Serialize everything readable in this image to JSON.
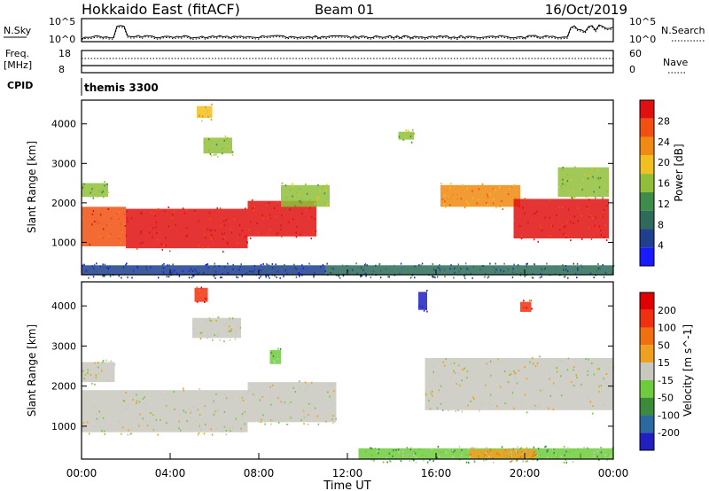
{
  "header": {
    "station": "Hokkaido East (fitACF)",
    "beam": "Beam 01",
    "date": "16/Oct/2019"
  },
  "noise_panel": {
    "left_label": "N.Sky",
    "left_ticks": [
      "10^5",
      "10^0"
    ],
    "right_label": "N.Search",
    "right_ticks": [
      "10^5",
      "10^0"
    ]
  },
  "freq_panel": {
    "left_label_1": "Freq.",
    "left_label_2": "[MHz]",
    "left_ticks": [
      "18",
      "8"
    ],
    "right_label": "Nave",
    "right_ticks": [
      "60",
      "0"
    ]
  },
  "cpid_panel": {
    "label": "CPID",
    "value": "themis 3300"
  },
  "colors": {
    "power_scale": [
      "#1a1aff",
      "#1f3f8f",
      "#2e6b5a",
      "#3e8c4a",
      "#8fbf3a",
      "#f0c020",
      "#f08a10",
      "#f05010",
      "#e01010"
    ],
    "velocity_scale": [
      "#2020c0",
      "#2a6aa0",
      "#3c8a3c",
      "#6ecc3c",
      "#c8c8c0",
      "#f0a020",
      "#f07010",
      "#f03010",
      "#e00000"
    ],
    "ground_scatter": "#c8c8c0"
  },
  "chart_data": [
    {
      "type": "heatmap",
      "name": "power",
      "xlabel": "",
      "ylabel": "Slant Range [km]",
      "x_ticks": [
        "00:00",
        "04:00",
        "08:00",
        "12:00",
        "16:00",
        "20:00",
        "00:00"
      ],
      "y_ticks": [
        1000,
        2000,
        3000,
        4000
      ],
      "ylim": [
        180,
        4600
      ],
      "xlim_hours": [
        0,
        24
      ],
      "colorbar": {
        "label": "Power [dB]",
        "ticks": [
          4,
          8,
          12,
          16,
          20,
          24,
          28
        ]
      },
      "regions": [
        {
          "t0": 0.0,
          "t1": 2.0,
          "r0": 900,
          "r1": 1900,
          "level": 7
        },
        {
          "t0": 2.0,
          "t1": 7.5,
          "r0": 850,
          "r1": 1850,
          "level": 8
        },
        {
          "t0": 7.5,
          "t1": 10.6,
          "r0": 1150,
          "r1": 2050,
          "level": 8
        },
        {
          "t0": 0.0,
          "t1": 1.2,
          "r0": 2150,
          "r1": 2500,
          "level": 4
        },
        {
          "t0": 5.5,
          "t1": 6.8,
          "r0": 3250,
          "r1": 3650,
          "level": 4
        },
        {
          "t0": 5.2,
          "t1": 5.9,
          "r0": 4150,
          "r1": 4450,
          "level": 5
        },
        {
          "t0": 9.0,
          "t1": 11.2,
          "r0": 1900,
          "r1": 2450,
          "level": 4
        },
        {
          "t0": 16.2,
          "t1": 19.8,
          "r0": 1900,
          "r1": 2450,
          "level": 6
        },
        {
          "t0": 19.5,
          "t1": 23.8,
          "r0": 1100,
          "r1": 2100,
          "level": 8
        },
        {
          "t0": 21.5,
          "t1": 23.8,
          "r0": 2150,
          "r1": 2900,
          "level": 4
        },
        {
          "t0": 14.3,
          "t1": 15.0,
          "r0": 3600,
          "r1": 3800,
          "level": 4
        },
        {
          "t0": 11.0,
          "t1": 24.0,
          "r0": 180,
          "r1": 420,
          "level": 2
        },
        {
          "t0": 0.0,
          "t1": 11.0,
          "r0": 180,
          "r1": 420,
          "level": 1
        }
      ]
    },
    {
      "type": "heatmap",
      "name": "velocity",
      "xlabel": "Time UT",
      "ylabel": "Slant Range [km]",
      "x_ticks": [
        "00:00",
        "04:00",
        "08:00",
        "12:00",
        "16:00",
        "20:00",
        "00:00"
      ],
      "y_ticks": [
        1000,
        2000,
        3000,
        4000
      ],
      "ylim": [
        180,
        4600
      ],
      "xlim_hours": [
        0,
        24
      ],
      "colorbar": {
        "label": "Velocity [m s^-1]",
        "ticks": [
          "200",
          "100",
          "50",
          "15",
          "-15",
          "-50",
          "-100",
          "-200"
        ]
      },
      "regions": [
        {
          "t0": 0.0,
          "t1": 7.5,
          "r0": 850,
          "r1": 1900,
          "level": 4
        },
        {
          "t0": 7.5,
          "t1": 11.5,
          "r0": 1100,
          "r1": 2100,
          "level": 4
        },
        {
          "t0": 0.0,
          "t1": 1.5,
          "r0": 2100,
          "r1": 2600,
          "level": 4
        },
        {
          "t0": 5.0,
          "t1": 7.2,
          "r0": 3200,
          "r1": 3700,
          "level": 4
        },
        {
          "t0": 15.5,
          "t1": 24.0,
          "r0": 1400,
          "r1": 2700,
          "level": 4
        },
        {
          "t0": 12.5,
          "t1": 24.0,
          "r0": 180,
          "r1": 450,
          "level": 3
        },
        {
          "t0": 17.5,
          "t1": 20.5,
          "r0": 200,
          "r1": 420,
          "level": 5
        },
        {
          "t0": 5.1,
          "t1": 5.7,
          "r0": 4100,
          "r1": 4450,
          "level": 7
        },
        {
          "t0": 15.2,
          "t1": 15.6,
          "r0": 3900,
          "r1": 4350,
          "level": 0
        },
        {
          "t0": 19.8,
          "t1": 20.3,
          "r0": 3850,
          "r1": 4100,
          "level": 7
        },
        {
          "t0": 8.5,
          "t1": 9.0,
          "r0": 2550,
          "r1": 2900,
          "level": 3
        }
      ]
    }
  ]
}
